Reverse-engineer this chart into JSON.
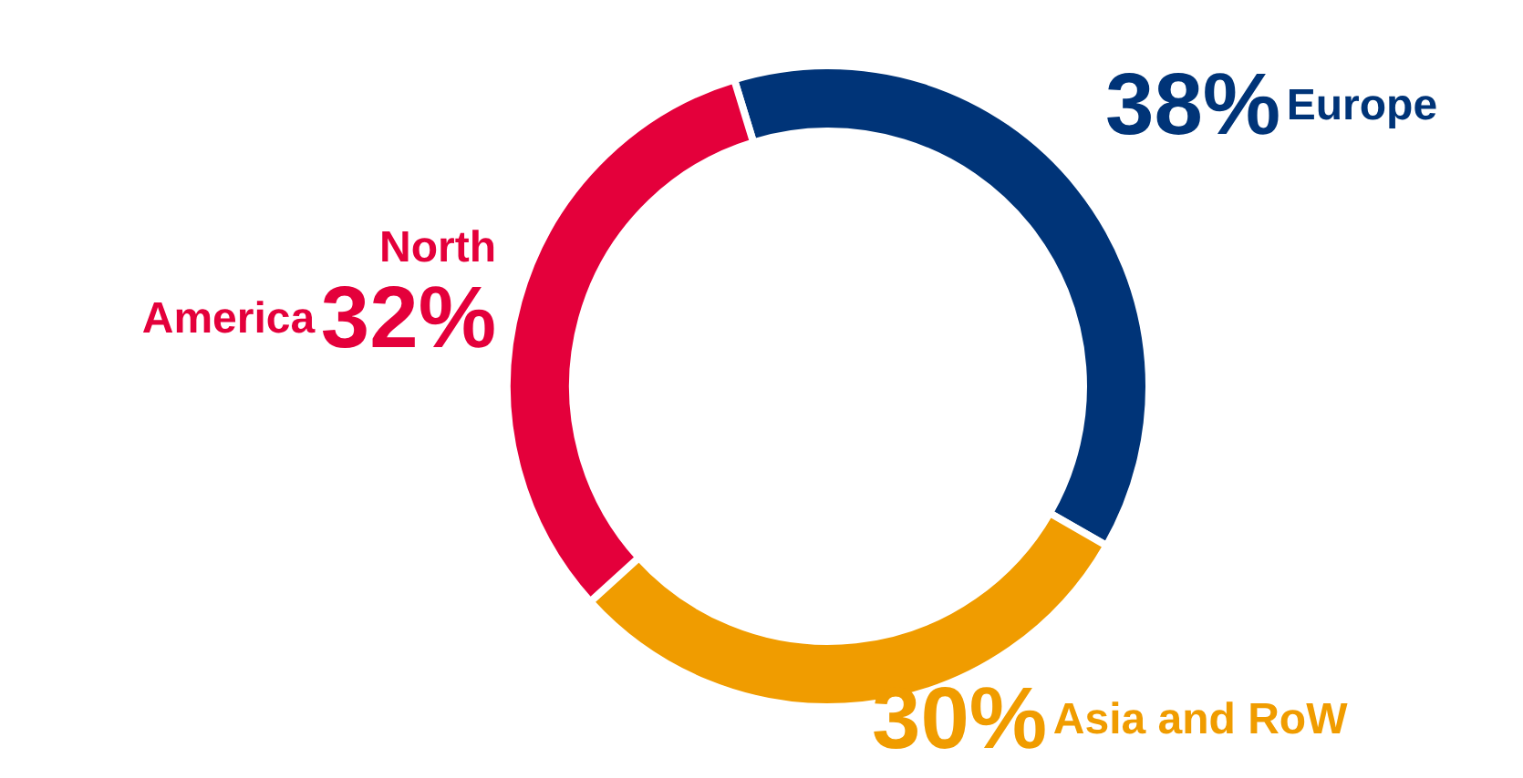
{
  "chart_data": {
    "type": "donut",
    "categories": [
      "Europe",
      "Asia and RoW",
      "North America"
    ],
    "values": [
      38,
      30,
      32
    ],
    "colors": [
      "#003478",
      "#f09c00",
      "#e4003b"
    ],
    "value_labels": [
      "38%",
      "30%",
      "32%"
    ],
    "legend": false
  }
}
